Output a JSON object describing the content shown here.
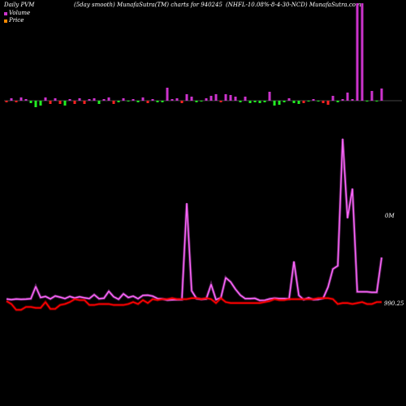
{
  "header": {
    "left": "Daily PVM",
    "mid": "(5day smooth) MunafaSutra(TM) charts for 940245",
    "right": "(NHFL-10.08%-8-4-30-NCD) MunafaSutra.com"
  },
  "colors": {
    "volume_line": "#cc33cc",
    "volume_line_glow": "#ff66ff",
    "price_line": "#ff0000",
    "bar_up": "#cc33cc",
    "bar_down": "#ff2222",
    "bar_flat": "#22ee22",
    "baseline": "#888888"
  },
  "chart_data": {
    "type": "line",
    "title": "Daily PVM",
    "legend": [
      "Volume",
      "Price"
    ],
    "y_labels": {
      "volume": "0M",
      "price": "990.25"
    },
    "x_count": 78,
    "bars": {
      "values": [
        -2,
        3,
        -2,
        4,
        2,
        -3,
        -8,
        -6,
        4,
        -4,
        3,
        -4,
        -6,
        2,
        -4,
        3,
        -4,
        2,
        3,
        -4,
        2,
        4,
        -4,
        -2,
        3,
        -1,
        2,
        -2,
        4,
        -3,
        2,
        -2,
        -2,
        16,
        2,
        3,
        -3,
        8,
        5,
        -2,
        -1,
        3,
        6,
        8,
        -2,
        8,
        7,
        5,
        -2,
        5,
        -3,
        -2,
        -3,
        -2,
        11,
        -6,
        -5,
        -2,
        3,
        -3,
        -4,
        -3,
        -1,
        2,
        -1,
        -3,
        -5,
        6,
        -2,
        2,
        10,
        2,
        120,
        120,
        -1,
        12,
        -1,
        15
      ],
      "colors": [
        "red",
        "up",
        "red",
        "up",
        "up",
        "green",
        "green",
        "green",
        "up",
        "red",
        "up",
        "red",
        "green",
        "up",
        "red",
        "up",
        "red",
        "up",
        "up",
        "green",
        "up",
        "up",
        "red",
        "green",
        "up",
        "green",
        "up",
        "green",
        "up",
        "red",
        "up",
        "green",
        "green",
        "up",
        "up",
        "up",
        "red",
        "up",
        "up",
        "green",
        "green",
        "up",
        "up",
        "up",
        "red",
        "up",
        "up",
        "up",
        "green",
        "up",
        "green",
        "green",
        "green",
        "green",
        "up",
        "green",
        "green",
        "green",
        "up",
        "green",
        "green",
        "red",
        "green",
        "up",
        "green",
        "red",
        "red",
        "up",
        "green",
        "up",
        "up",
        "up",
        "up",
        "up",
        "green",
        "up",
        "green",
        "up"
      ]
    },
    "series": [
      {
        "name": "Volume",
        "values": [
          6,
          5.5,
          6,
          5.8,
          5.9,
          6.3,
          18,
          7.5,
          8.5,
          6.2,
          9,
          7.8,
          6.5,
          8.5,
          7,
          8.2,
          7.2,
          6.5,
          10.2,
          6.3,
          6.8,
          13.5,
          8.2,
          5.8,
          11,
          7.5,
          8.8,
          6.3,
          9.5,
          9.8,
          8.8,
          6.5,
          6.2,
          5,
          5.2,
          5.4,
          5.5,
          98,
          14,
          6.5,
          5.8,
          6.2,
          20,
          5.5,
          7.2,
          26.5,
          22.5,
          15.5,
          9.8,
          6.4,
          6.5,
          6.7,
          4.7,
          4.8,
          6.2,
          6.8,
          6.5,
          6.5,
          6.2,
          42,
          9.6,
          5.5,
          7.3,
          5.5,
          5.7,
          6.8,
          17.5,
          35,
          38,
          160,
          84,
          112,
          13,
          13,
          13,
          12.5,
          12.5,
          46
        ]
      },
      {
        "name": "Price",
        "values": [
          990.6,
          990.3,
          989.7,
          989.7,
          990.0,
          990.0,
          989.9,
          989.9,
          990.5,
          989.8,
          989.8,
          990.2,
          990.3,
          990.5,
          990.8,
          990.7,
          990.7,
          990.2,
          990.2,
          990.3,
          990.3,
          990.3,
          990.2,
          990.2,
          990.2,
          990.3,
          990.5,
          990.3,
          990.7,
          990.4,
          990.8,
          990.7,
          990.8,
          990.8,
          990.9,
          990.8,
          990.8,
          990.8,
          990.9,
          990.9,
          990.8,
          990.9,
          990.8,
          990.4,
          990.9,
          990.5,
          990.4,
          990.4,
          990.4,
          990.4,
          990.4,
          990.4,
          990.4,
          990.5,
          990.6,
          990.8,
          990.7,
          990.7,
          990.8,
          990.8,
          990.8,
          990.8,
          990.8,
          990.8,
          990.9,
          990.9,
          990.9,
          990.8,
          990.3,
          990.4,
          990.4,
          990.3,
          990.4,
          990.5,
          990.3,
          990.3,
          990.5,
          990.5
        ]
      }
    ]
  }
}
